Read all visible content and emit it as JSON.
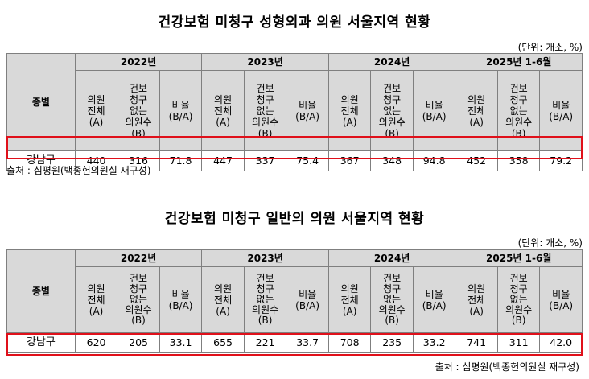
{
  "tables": [
    {
      "title": "건강보험 미청구 성형외과 의원 서울지역 현황",
      "unit": "(단위: 개소, %)",
      "category_header": "종별",
      "years": [
        "2022년",
        "2023년",
        "2024년",
        "2025년 1-6월"
      ],
      "sub_headers": [
        "의원\n전체\n(A)",
        "건보\n청구\n없는\n의원수\n(B)",
        "비율\n(B/A)"
      ],
      "row": {
        "name": "강남구",
        "values": [
          "440",
          "316",
          "71.8",
          "447",
          "337",
          "75.4",
          "367",
          "348",
          "94.8",
          "452",
          "358",
          "79.2"
        ]
      },
      "source": "출처 : 심평원(백종헌의원실 재구성)"
    },
    {
      "title": "건강보험 미청구 일반의 의원 서울지역 현황",
      "unit": "(단위: 개소, %)",
      "category_header": "종별",
      "years": [
        "2022년",
        "2023년",
        "2024년",
        "2025년 1-6월"
      ],
      "sub_headers": [
        "의원\n전체\n(A)",
        "건보\n청구\n없는\n의원수\n(B)",
        "비율\n(B/A)"
      ],
      "row": {
        "name": "강남구",
        "values": [
          "620",
          "205",
          "33.1",
          "655",
          "221",
          "33.7",
          "708",
          "235",
          "33.2",
          "741",
          "311",
          "42.0"
        ]
      },
      "source": "출처 : 심평원(백종헌의원실 재구성)"
    }
  ],
  "colors": {
    "header_bg": "#d9d9d9",
    "highlight_border": "#e0101a",
    "grid": "#7f7f7f"
  }
}
